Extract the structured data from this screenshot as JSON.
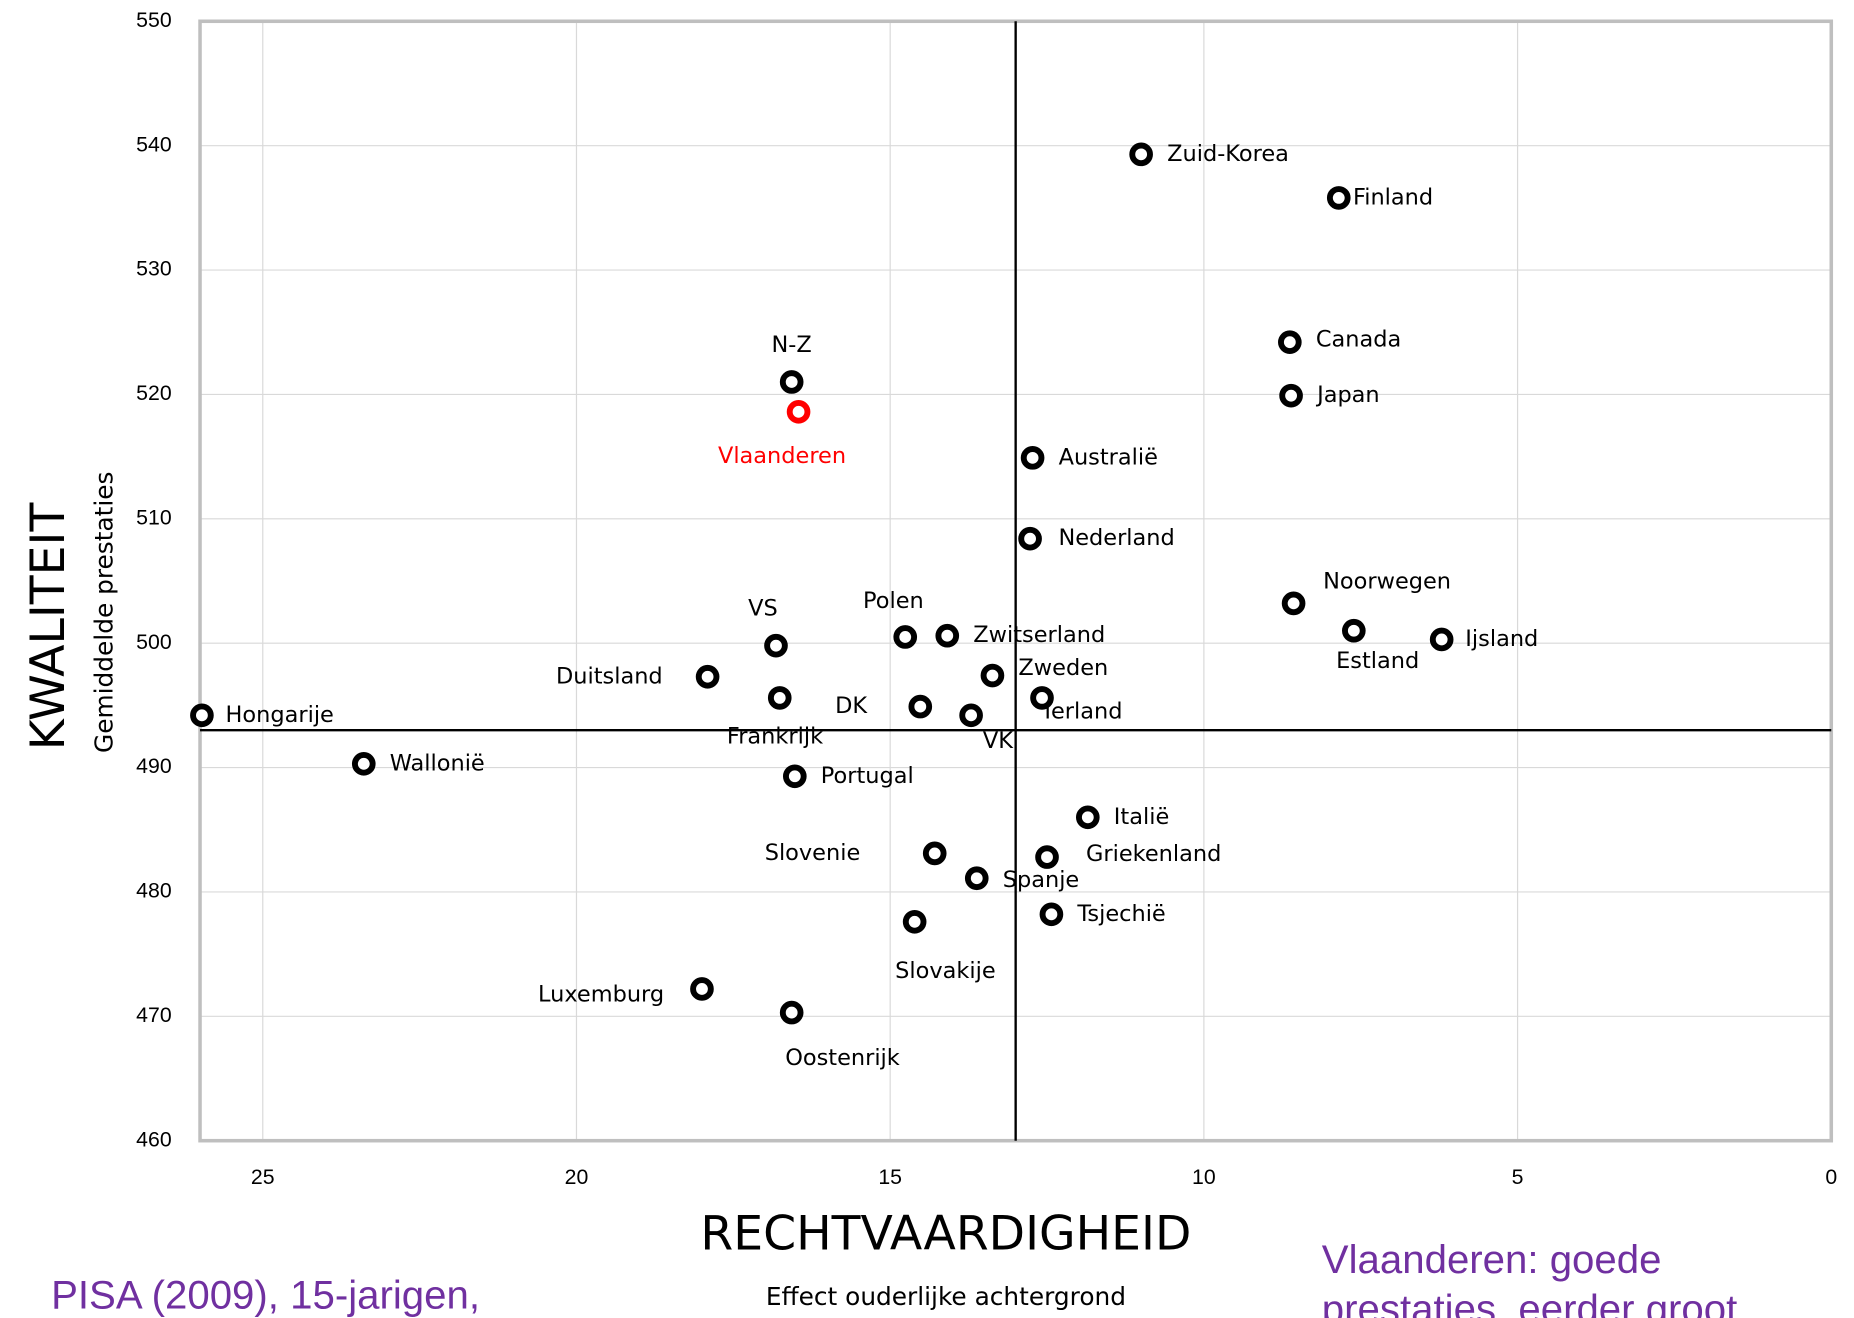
{
  "chart_data": {
    "type": "scatter",
    "y_label": "KWALITEIT",
    "y_sublabel": "Gemiddelde prestaties",
    "x_label": "RECHTVAARDIGHEID",
    "x_sublabel": "Effect ouderlijke achtergrond",
    "annotations": [
      "PISA (2009), 15-jarigen,",
      "Vlaanderen: goede",
      "prestaties, eerder groot"
    ],
    "labels": [
      "Zuid-Korea",
      "Finland",
      "Canada",
      "Japan",
      "N-Z",
      "Vlaanderen",
      "Australië",
      "Nederland",
      "Noorwegen",
      "Estland",
      "Ijsland",
      "VS",
      "Polen",
      "Zwitserland",
      "Zweden",
      "Duitsland",
      "Frankrijk",
      "DK",
      "VK",
      "Ierland",
      "Hongarije",
      "Wallonië",
      "Portugal",
      "Italië",
      "Slovenie",
      "Griekenland",
      "Spanje",
      "Tsjechië",
      "Slovakije",
      "Luxemburg",
      "Oostenrijk"
    ],
    "x": [
      11.0,
      7.85,
      8.63,
      8.61,
      16.57,
      16.46,
      12.73,
      12.77,
      8.57,
      7.61,
      6.21,
      16.82,
      14.76,
      14.09,
      13.37,
      17.91,
      16.76,
      14.52,
      13.71,
      12.58,
      25.97,
      23.39,
      16.52,
      11.85,
      14.29,
      12.5,
      13.62,
      12.43,
      14.61,
      18.0,
      16.57
    ],
    "values": [
      539.3,
      535.8,
      524.2,
      519.9,
      521.0,
      518.6,
      514.9,
      508.4,
      503.2,
      501.0,
      500.3,
      499.8,
      500.5,
      500.6,
      497.4,
      497.3,
      495.6,
      494.9,
      494.2,
      495.6,
      494.2,
      490.3,
      489.3,
      486.0,
      483.1,
      482.8,
      481.1,
      478.2,
      477.6,
      472.2,
      470.3
    ],
    "colors": [
      "#000000",
      "#000000",
      "#000000",
      "#000000",
      "#000000",
      "#ff0000",
      "#000000",
      "#000000",
      "#000000",
      "#000000",
      "#000000",
      "#000000",
      "#000000",
      "#000000",
      "#000000",
      "#000000",
      "#000000",
      "#000000",
      "#000000",
      "#000000",
      "#000000",
      "#000000",
      "#000000",
      "#000000",
      "#000000",
      "#000000",
      "#000000",
      "#000000",
      "#000000",
      "#000000",
      "#000000"
    ],
    "label_colors": [
      "#000000",
      "#000000",
      "#000000",
      "#000000",
      "#000000",
      "#ff0000",
      "#000000",
      "#000000",
      "#000000",
      "#000000",
      "#000000",
      "#000000",
      "#000000",
      "#000000",
      "#000000",
      "#000000",
      "#000000",
      "#000000",
      "#000000",
      "#000000",
      "#000000",
      "#000000",
      "#000000",
      "#000000",
      "#000000",
      "#000000",
      "#000000",
      "#000000",
      "#000000",
      "#000000",
      "#000000"
    ],
    "xlim": [
      26,
      0
    ],
    "xticks": [
      25,
      20,
      15,
      10,
      5,
      0
    ],
    "ylim": [
      460,
      550
    ],
    "yticks": [
      460,
      470,
      480,
      490,
      500,
      510,
      520,
      530,
      540,
      550
    ],
    "x_reference": 13,
    "y_reference": 493,
    "grid": true
  }
}
